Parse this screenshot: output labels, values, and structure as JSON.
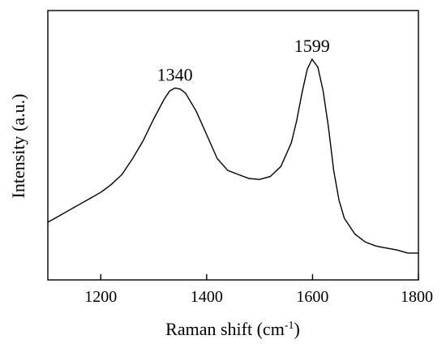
{
  "chart_data": {
    "type": "line",
    "xlabel_main": "Raman shift (cm",
    "xlabel_sup": "-1",
    "xlabel_close": ")",
    "ylabel": "Intensity (a.u.)",
    "xlim": [
      1100,
      1800
    ],
    "ylim": [
      0,
      1
    ],
    "x_ticks": [
      1200,
      1400,
      1600,
      1800
    ],
    "y_ticks_shown": false,
    "grid": false,
    "annotations": [
      {
        "text": "1340",
        "x": 1340,
        "y": 0.855
      },
      {
        "text": "1599",
        "x": 1599,
        "y": 1.0
      }
    ],
    "series": [
      {
        "x": [
          1100,
          1120,
          1140,
          1160,
          1180,
          1200,
          1220,
          1240,
          1260,
          1280,
          1300,
          1320,
          1330,
          1340,
          1350,
          1360,
          1380,
          1400,
          1420,
          1440,
          1460,
          1480,
          1500,
          1520,
          1540,
          1560,
          1570,
          1580,
          1590,
          1599,
          1610,
          1620,
          1630,
          1640,
          1650,
          1660,
          1680,
          1700,
          1720,
          1740,
          1760,
          1780,
          1800
        ],
        "y": [
          0.18,
          0.21,
          0.24,
          0.27,
          0.3,
          0.33,
          0.37,
          0.42,
          0.5,
          0.59,
          0.7,
          0.8,
          0.84,
          0.855,
          0.85,
          0.83,
          0.74,
          0.62,
          0.5,
          0.44,
          0.42,
          0.4,
          0.395,
          0.41,
          0.46,
          0.58,
          0.69,
          0.83,
          0.95,
          1.0,
          0.96,
          0.84,
          0.66,
          0.44,
          0.29,
          0.2,
          0.12,
          0.08,
          0.06,
          0.05,
          0.04,
          0.025,
          0.025
        ]
      }
    ]
  }
}
